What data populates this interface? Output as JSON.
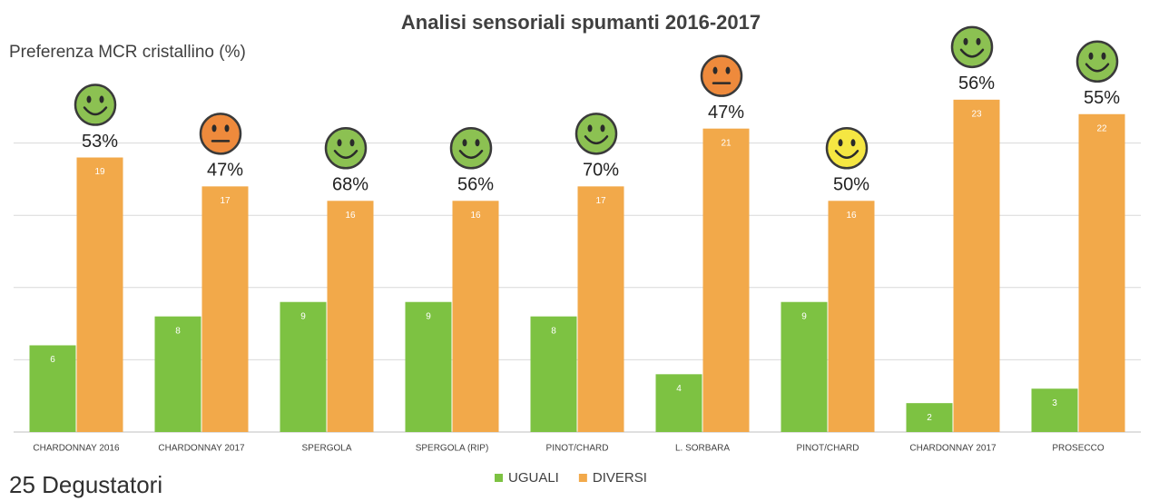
{
  "chart_data": {
    "type": "bar",
    "title": "Analisi sensoriali spumanti 2016-2017",
    "y_label": "Preferenza MCR cristallino (%)",
    "footnote": "25 Degustatori",
    "categories": [
      "CHARDONNAY 2016",
      "CHARDONNAY 2017",
      "SPERGOLA",
      "SPERGOLA (RIP)",
      "PINOT/CHARD",
      "L. SORBARA",
      "PINOT/CHARD",
      "CHARDONNAY 2017",
      "PROSECCO"
    ],
    "series": [
      {
        "name": "UGUALI",
        "color": "#7dc242",
        "values": [
          6,
          8,
          9,
          9,
          8,
          4,
          9,
          2,
          3
        ]
      },
      {
        "name": "DIVERSI",
        "color": "#f2a94a",
        "values": [
          19,
          17,
          16,
          16,
          17,
          21,
          16,
          23,
          22
        ]
      }
    ],
    "annotations": [
      {
        "label": "53%",
        "face": "smile",
        "color": "#8cc152"
      },
      {
        "label": "47%",
        "face": "neutral",
        "color": "#ee8a3c"
      },
      {
        "label": "68%",
        "face": "smile",
        "color": "#8cc152"
      },
      {
        "label": "56%",
        "face": "smile",
        "color": "#8cc152"
      },
      {
        "label": "70%",
        "face": "smile",
        "color": "#8cc152"
      },
      {
        "label": "47%",
        "face": "neutral",
        "color": "#ee8a3c"
      },
      {
        "label": "50%",
        "face": "smile",
        "color": "#f5e642"
      },
      {
        "label": "56%",
        "face": "smile",
        "color": "#8cc152"
      },
      {
        "label": "55%",
        "face": "smile",
        "color": "#8cc152"
      }
    ],
    "ylim": [
      0,
      25
    ],
    "yticks": [
      0,
      5,
      10,
      15,
      20
    ],
    "grid": true,
    "legend": "bottom"
  }
}
